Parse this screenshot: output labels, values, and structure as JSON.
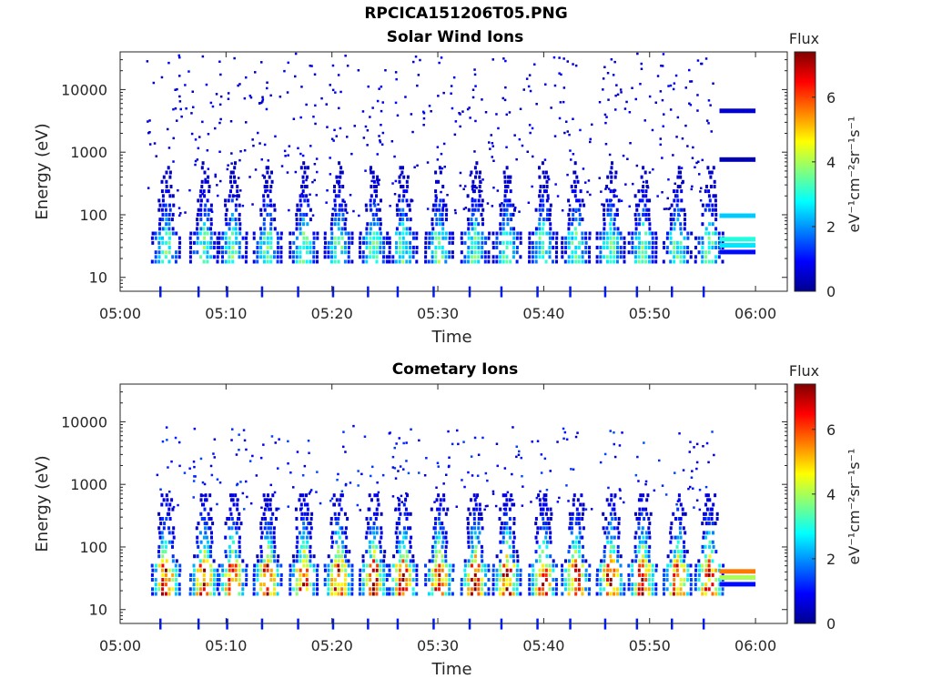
{
  "figure_title": "RPCICA151206T05.PNG",
  "colors": {
    "colormap": "jet",
    "axes": "#262626",
    "background": "#ffffff"
  },
  "chart_data": [
    {
      "type": "heatmap",
      "title": "Solar Wind Ions",
      "xlabel": "Time",
      "ylabel": "Energy (eV)",
      "x_ticks": [
        "05:00",
        "05:10",
        "05:20",
        "05:30",
        "05:40",
        "05:50",
        "06:00"
      ],
      "xlim": [
        "05:00",
        "06:03"
      ],
      "y_scale": "log",
      "y_ticks": [
        "10",
        "100",
        "1000",
        "10000"
      ],
      "ylim": [
        6,
        40000
      ],
      "colorbar": {
        "label": "Flux",
        "unit": "eV⁻¹cm⁻²sr⁻¹s⁻¹",
        "range": [
          0,
          7.4
        ],
        "ticks": [
          "0",
          "2",
          "4",
          "6"
        ]
      },
      "sweeps_min": [
        4.2,
        7.8,
        10.5,
        13.8,
        17.2,
        20.5,
        23.8,
        26.6,
        30.0,
        33.4,
        36.4,
        39.8,
        42.9,
        46.2,
        49.2,
        52.5,
        55.5
      ],
      "sweep_peak_flux": 3.6,
      "background_scatter_flux": 0.6,
      "calibration_lines": [
        {
          "energy_ev": 4500,
          "flux": 0.5
        },
        {
          "energy_ev": 750,
          "flux": 0.3
        },
        {
          "energy_ev": 95,
          "flux": 2.4
        },
        {
          "energy_ev": 40,
          "flux": 3.0
        },
        {
          "energy_ev": 32,
          "flux": 2.6
        },
        {
          "energy_ev": 25,
          "flux": 1.0
        }
      ]
    },
    {
      "type": "heatmap",
      "title": "Cometary Ions",
      "xlabel": "Time",
      "ylabel": "Energy (eV)",
      "x_ticks": [
        "05:00",
        "05:10",
        "05:20",
        "05:30",
        "05:40",
        "05:50",
        "06:00"
      ],
      "xlim": [
        "05:00",
        "06:03"
      ],
      "y_scale": "log",
      "y_ticks": [
        "10",
        "100",
        "1000",
        "10000"
      ],
      "ylim": [
        6,
        40000
      ],
      "colorbar": {
        "label": "Flux",
        "unit": "eV⁻¹cm⁻²sr⁻¹s⁻¹",
        "range": [
          0,
          7.4
        ],
        "ticks": [
          "0",
          "2",
          "4",
          "6"
        ]
      },
      "sweeps_min": [
        4.2,
        7.8,
        10.5,
        13.8,
        17.2,
        20.5,
        23.8,
        26.6,
        30.0,
        33.4,
        36.4,
        39.8,
        42.9,
        46.2,
        49.2,
        52.5,
        55.5
      ],
      "sweep_peak_flux": 6.9,
      "background_scatter_flux": 0.9,
      "calibration_lines": [
        {
          "energy_ev": 40,
          "flux": 5.6
        },
        {
          "energy_ev": 32,
          "flux": 4.0
        },
        {
          "energy_ev": 25,
          "flux": 1.0
        }
      ]
    }
  ]
}
